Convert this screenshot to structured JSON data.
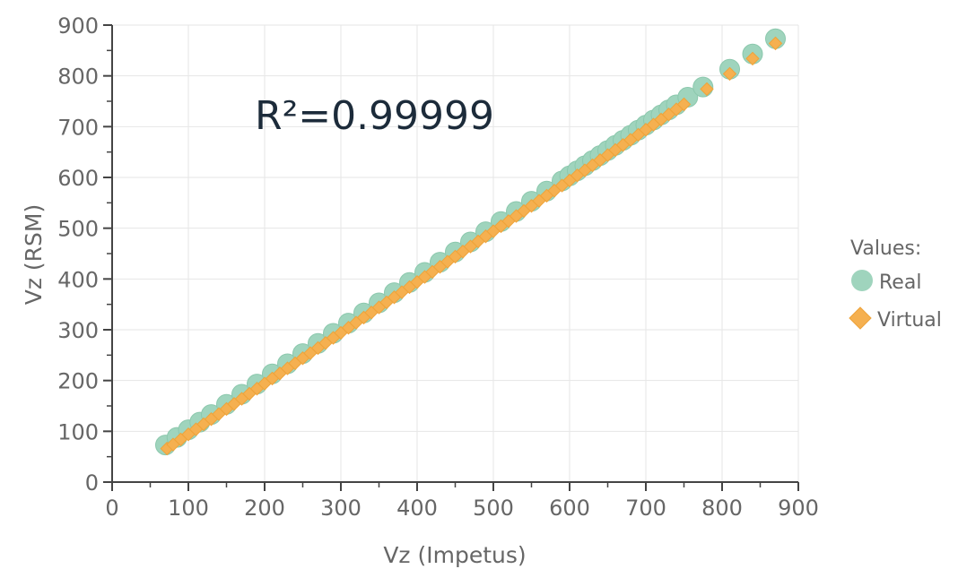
{
  "chart_data": {
    "type": "scatter",
    "title": "",
    "xlabel": "Vz (Impetus)",
    "ylabel": "Vz (RSM)",
    "xlim": [
      0,
      900
    ],
    "ylim": [
      0,
      900
    ],
    "xticks": [
      "0",
      "100",
      "200",
      "300",
      "400",
      "500",
      "600",
      "700",
      "800",
      "900"
    ],
    "yticks": [
      "0",
      "100",
      "200",
      "300",
      "400",
      "500",
      "600",
      "700",
      "800",
      "900"
    ],
    "grid": true,
    "annotation": "R²=0.99999",
    "legend": {
      "title": "Values:",
      "placement": "right",
      "entries": [
        {
          "name": "Real",
          "marker": "circle",
          "color": "#9fd4bd"
        },
        {
          "name": "Virtual",
          "marker": "diamond",
          "color": "#f5b050"
        }
      ]
    },
    "series": [
      {
        "name": "Real",
        "marker": "circle",
        "color": "#9fd4bd",
        "x": [
          70,
          85,
          100,
          115,
          130,
          150,
          170,
          190,
          210,
          230,
          250,
          270,
          290,
          310,
          330,
          350,
          370,
          390,
          410,
          430,
          450,
          470,
          490,
          510,
          530,
          550,
          570,
          590,
          600,
          610,
          620,
          630,
          640,
          650,
          660,
          670,
          680,
          690,
          700,
          710,
          720,
          730,
          740,
          755,
          775,
          810,
          840,
          870
        ],
        "y": [
          73,
          88,
          103,
          118,
          133,
          153,
          173,
          193,
          213,
          233,
          253,
          273,
          293,
          313,
          333,
          353,
          373,
          393,
          413,
          433,
          453,
          473,
          493,
          513,
          533,
          553,
          573,
          593,
          603,
          613,
          623,
          633,
          643,
          653,
          663,
          673,
          683,
          693,
          703,
          713,
          723,
          733,
          743,
          758,
          778,
          813,
          843,
          873
        ]
      },
      {
        "name": "Virtual",
        "marker": "diamond",
        "color": "#f5b050",
        "x": [
          72,
          80,
          90,
          100,
          110,
          120,
          130,
          140,
          150,
          160,
          170,
          180,
          190,
          200,
          210,
          220,
          230,
          240,
          250,
          260,
          270,
          280,
          290,
          300,
          310,
          320,
          330,
          340,
          350,
          360,
          370,
          380,
          390,
          400,
          410,
          420,
          430,
          440,
          450,
          460,
          470,
          480,
          490,
          500,
          510,
          520,
          530,
          540,
          550,
          560,
          570,
          580,
          590,
          600,
          610,
          620,
          630,
          640,
          650,
          660,
          670,
          680,
          690,
          700,
          710,
          720,
          730,
          740,
          750,
          780,
          810,
          840,
          870
        ],
        "y": [
          66,
          74,
          84,
          94,
          104,
          114,
          124,
          134,
          144,
          154,
          164,
          174,
          184,
          194,
          204,
          214,
          224,
          234,
          244,
          254,
          264,
          274,
          284,
          294,
          304,
          314,
          324,
          334,
          344,
          354,
          364,
          374,
          384,
          394,
          404,
          414,
          424,
          434,
          444,
          454,
          464,
          474,
          484,
          494,
          504,
          514,
          524,
          534,
          544,
          554,
          564,
          574,
          584,
          594,
          604,
          614,
          624,
          634,
          644,
          654,
          664,
          674,
          684,
          694,
          704,
          714,
          724,
          734,
          744,
          774,
          804,
          834,
          864
        ]
      }
    ]
  }
}
